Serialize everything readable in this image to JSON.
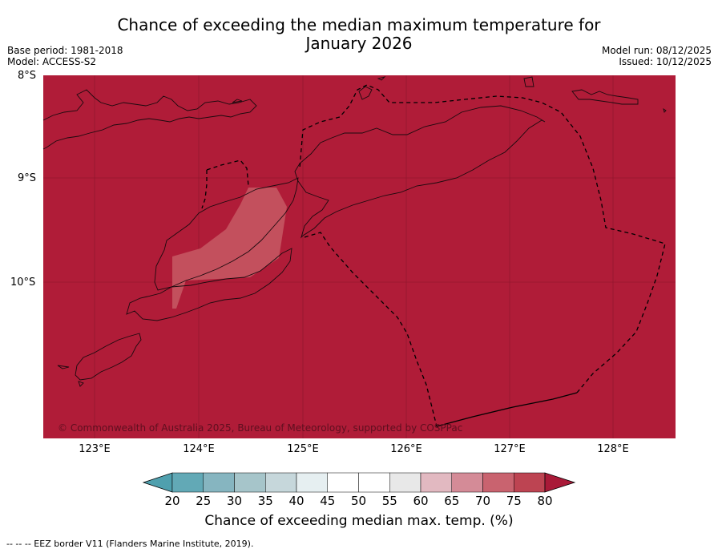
{
  "title_line1": "Chance of exceeding the median maximum temperature for",
  "title_line2": "January 2026",
  "base_period": "Base period: 1981-2018",
  "model": "Model: ACCESS-S2",
  "model_run": "Model run: 08/12/2025",
  "issued": "Issued: 10/12/2025",
  "lat_labels": [
    "8°S",
    "9°S",
    "10°S"
  ],
  "lon_labels": [
    "123°E",
    "124°E",
    "125°E",
    "126°E",
    "127°E",
    "128°E"
  ],
  "copyright": "© Commonwealth of Australia 2025, Bureau of Meteorology, supported by COSPPac",
  "colorbar": {
    "ticks": [
      "20",
      "25",
      "30",
      "35",
      "40",
      "45",
      "50",
      "55",
      "60",
      "65",
      "70",
      "75",
      "80"
    ],
    "colors": [
      "#62a9b6",
      "#86b5c0",
      "#a6c5ca",
      "#c6d7db",
      "#e6eff1",
      "#ffffff",
      "#ffffff",
      "#e8e8e8",
      "#e2b9c1",
      "#d48b97",
      "#c9636f",
      "#bd4452"
    ],
    "under_color": "#4fa0ae",
    "over_color": "#a91a38",
    "label": "Chance of exceeding median max. temp. (%)"
  },
  "map_colors": {
    "background": "#b01c38",
    "anomaly": "#c3505d"
  },
  "footer": "--  --  -- EEZ border V11 (Flanders Marine Institute, 2019)."
}
